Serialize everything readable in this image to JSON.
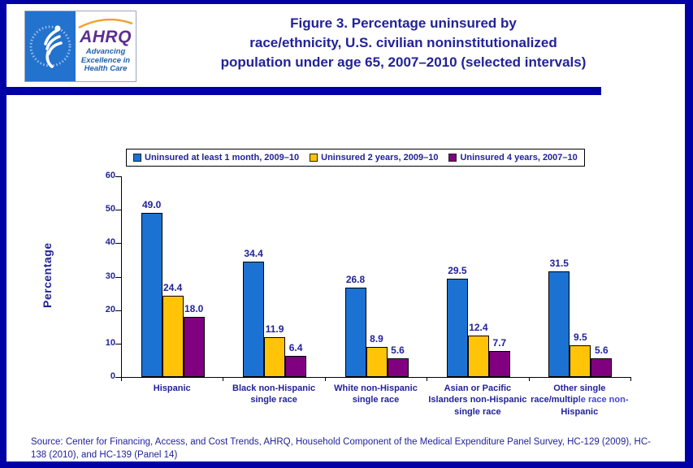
{
  "header": {
    "logo": {
      "acronym": "AHRQ",
      "tagline_lines": [
        "Advancing",
        "Excellence in",
        "Health Care"
      ]
    },
    "title_lines": [
      "Figure 3. Percentage uninsured by",
      "race/ethnicity, U.S. civilian noninstitutionalized",
      "population under age 65, 2007–2010 (selected intervals)"
    ]
  },
  "chart_data": {
    "type": "bar",
    "title": "Figure 3. Percentage uninsured by race/ethnicity, U.S. civilian noninstitutionalized population under age 65, 2007–2010 (selected intervals)",
    "categories": [
      "Hispanic",
      "Black non-Hispanic single race",
      "White non-Hispanic single race",
      "Asian or Pacific Islanders non-Hispanic single race",
      "Other single race/multiple race non-Hispanic"
    ],
    "series": [
      {
        "name": "Uninsured at least 1 month, 2009–10",
        "color": "#1B72D2",
        "values": [
          49.0,
          34.4,
          26.8,
          29.5,
          31.5
        ]
      },
      {
        "name": "Uninsured 2 years, 2009–10",
        "color": "#FFC408",
        "values": [
          24.4,
          11.9,
          8.9,
          12.4,
          9.5
        ]
      },
      {
        "name": "Uninsured 4 years, 2007–10",
        "color": "#800080",
        "values": [
          18.0,
          6.4,
          5.6,
          7.7,
          5.6
        ]
      }
    ],
    "ylabel": "Percentage",
    "xlabel": "",
    "ylim": [
      0,
      60
    ],
    "ytick_step": 10,
    "grid": false,
    "legend_position": "top",
    "value_label_decimals": 1,
    "x_label_special": {
      "index": 4,
      "parts": [
        {
          "text": "Other single race/multip",
          "style": "normal"
        },
        {
          "text": "le race non-",
          "style": "light"
        },
        {
          "text": "Hispanic",
          "style": "normal"
        }
      ]
    }
  },
  "footer": {
    "source": "Source: Center for Financing, Access, and Cost Trends, AHRQ, Household Component of the Medical Expenditure Panel Survey,  HC-129 (2009), HC-138 (2010), and HC-139 (Panel 14)"
  },
  "colors": {
    "border_navy": "#0000A6",
    "text_navy": "#222299",
    "bar_blue": "#1B72D2",
    "bar_yellow": "#FFC408",
    "bar_purple": "#800080",
    "light_label_blue": "#4747D1",
    "hhs_logo_blue": "#2272CE",
    "ahrq_purple": "#5C2D91",
    "ahrq_arc_orange": "#F0A030"
  }
}
